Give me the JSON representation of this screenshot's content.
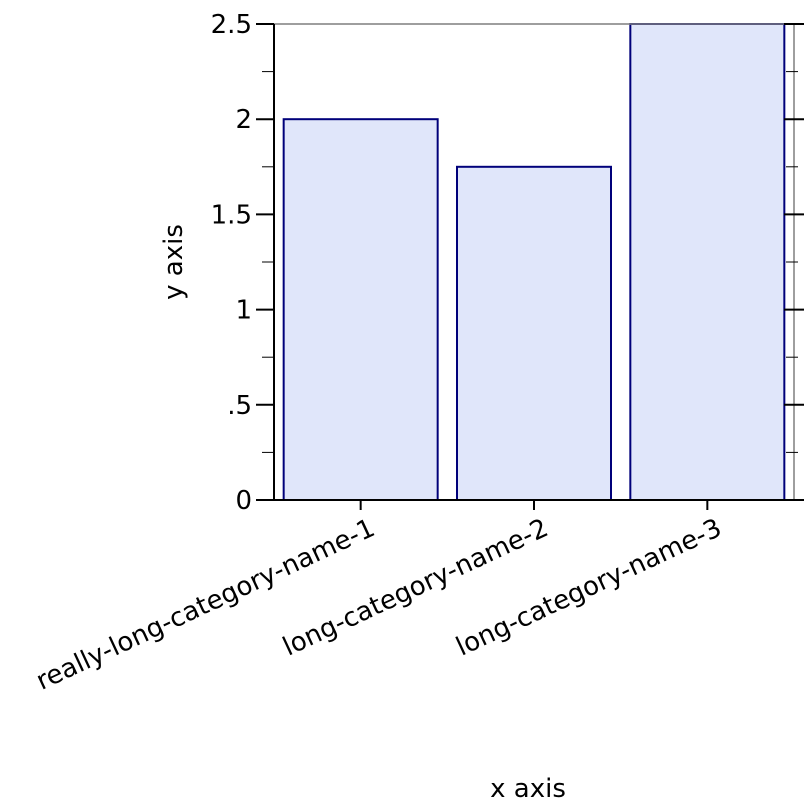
{
  "chart_data": {
    "type": "bar",
    "categories": [
      "really-long-category-name-1",
      "long-category-name-2",
      "long-category-name-3"
    ],
    "values": [
      2,
      1.75,
      2.5
    ],
    "xlabel": "x axis",
    "ylabel": "y axis",
    "ylim": [
      0,
      2.5
    ],
    "yticks": [
      {
        "value": 0,
        "label": "0"
      },
      {
        "value": 0.5,
        "label": ".5"
      },
      {
        "value": 1,
        "label": "1"
      },
      {
        "value": 1.5,
        "label": "1.5"
      },
      {
        "value": 2,
        "label": "2"
      },
      {
        "value": 2.5,
        "label": "2.5"
      }
    ],
    "grid": false,
    "colors": {
      "bar_fill": "#e0e6fa",
      "bar_stroke": "#00007a",
      "axis": "#000000",
      "frame": "#7f7f7f"
    }
  }
}
